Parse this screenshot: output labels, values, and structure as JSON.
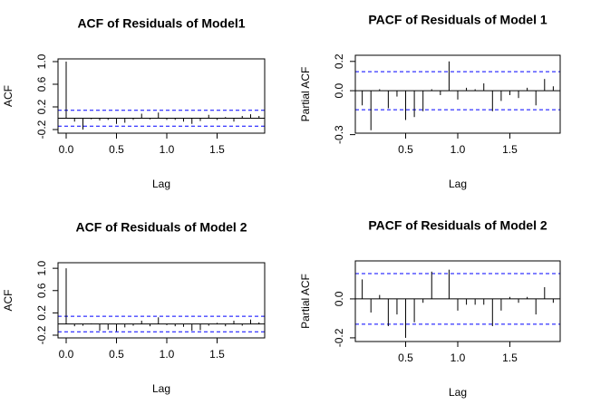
{
  "chart_data": [
    {
      "type": "acf",
      "title": "ACF of Residuals of Model1",
      "xlabel": "Lag",
      "ylabel": "ACF",
      "x": [
        0,
        0.0833,
        0.1667,
        0.25,
        0.3333,
        0.4167,
        0.5,
        0.5833,
        0.6667,
        0.75,
        0.8333,
        0.9167,
        1,
        1.0833,
        1.1667,
        1.25,
        1.3333,
        1.4167,
        1.5,
        1.5833,
        1.6667,
        1.75,
        1.8333,
        1.9167
      ],
      "values": [
        1.0,
        -0.06,
        -0.2,
        -0.02,
        -0.04,
        -0.03,
        -0.1,
        -0.08,
        -0.03,
        0.08,
        -0.02,
        0.1,
        -0.03,
        -0.03,
        -0.06,
        -0.1,
        -0.05,
        0.06,
        -0.03,
        0.02,
        -0.06,
        0.04,
        0.07,
        0.04
      ],
      "ci_bound": 0.14,
      "color": "#000000",
      "ci_color": "#0000ff",
      "xlim": [
        -0.081,
        1.973
      ],
      "ylim": [
        -0.264,
        1.048
      ],
      "xticks": [
        {
          "value": 0,
          "label": "0.0"
        },
        0.5,
        {
          "value": 1,
          "label": "1.0"
        },
        1.5
      ],
      "yticks": [
        -0.2,
        0.2,
        0.6,
        {
          "value": 1,
          "label": "1.0"
        }
      ]
    },
    {
      "type": "acf",
      "title": "PACF of Residuals of Model 1",
      "xlabel": "Lag",
      "ylabel": "Partial ACF",
      "x": [
        0.0833,
        0.1667,
        0.25,
        0.3333,
        0.4167,
        0.5,
        0.5833,
        0.6667,
        0.75,
        0.8333,
        0.9167,
        1,
        1.0833,
        1.1667,
        1.25,
        1.3333,
        1.4167,
        1.5,
        1.5833,
        1.6667,
        1.75,
        1.8333,
        1.9167
      ],
      "values": [
        -0.1,
        -0.27,
        0.01,
        -0.12,
        -0.04,
        -0.2,
        -0.18,
        -0.14,
        0.01,
        -0.03,
        0.2,
        -0.06,
        0.02,
        0.01,
        0.05,
        -0.14,
        -0.07,
        -0.03,
        -0.05,
        0.02,
        -0.1,
        0.08,
        0.03
      ],
      "ci_bound": 0.13,
      "color": "#000000",
      "ci_color": "#0000ff",
      "xlim": [
        0.017,
        1.983
      ],
      "ylim": [
        -0.29,
        0.242
      ],
      "xticks": [
        0.5,
        {
          "value": 1,
          "label": "1.0"
        },
        1.5
      ],
      "yticks": [
        -0.3,
        {
          "value": 0,
          "label": "0.0"
        },
        0.2
      ]
    },
    {
      "type": "acf",
      "title": "ACF of Residuals of Model 2",
      "xlabel": "Lag",
      "ylabel": "ACF",
      "x": [
        0,
        0.0833,
        0.1667,
        0.25,
        0.3333,
        0.4167,
        0.5,
        0.5833,
        0.6667,
        0.75,
        0.8333,
        0.9167,
        1,
        1.0833,
        1.1667,
        1.25,
        1.3333,
        1.4167,
        1.5,
        1.5833,
        1.6667,
        1.75,
        1.8333,
        1.9167
      ],
      "values": [
        1.0,
        -0.04,
        -0.03,
        0.01,
        -0.12,
        -0.1,
        -0.13,
        -0.06,
        -0.03,
        0.06,
        -0.04,
        0.12,
        -0.02,
        -0.04,
        -0.05,
        -0.12,
        -0.11,
        -0.03,
        0.02,
        -0.04,
        0.06,
        -0.03,
        0.08,
        0.03
      ],
      "ci_bound": 0.14,
      "color": "#000000",
      "ci_color": "#0000ff",
      "xlim": [
        -0.081,
        1.973
      ],
      "ylim": [
        -0.249,
        1.1
      ],
      "xticks": [
        {
          "value": 0,
          "label": "0.0"
        },
        0.5,
        {
          "value": 1,
          "label": "1.0"
        },
        1.5
      ],
      "yticks": [
        -0.2,
        0.2,
        0.6,
        {
          "value": 1,
          "label": "1.0"
        }
      ]
    },
    {
      "type": "acf",
      "title": "PACF of Residuals of Model 2",
      "xlabel": "Lag",
      "ylabel": "Partial ACF",
      "x": [
        0.0833,
        0.1667,
        0.25,
        0.3333,
        0.4167,
        0.5,
        0.5833,
        0.6667,
        0.75,
        0.8333,
        0.9167,
        1,
        1.0833,
        1.1667,
        1.25,
        1.3333,
        1.4167,
        1.5,
        1.5833,
        1.6667,
        1.75,
        1.8333,
        1.9167
      ],
      "values": [
        0.1,
        -0.07,
        0.02,
        -0.14,
        -0.08,
        -0.2,
        -0.12,
        -0.02,
        0.14,
        0.0,
        0.15,
        -0.06,
        -0.03,
        -0.03,
        -0.03,
        -0.14,
        -0.06,
        0.01,
        -0.02,
        0.01,
        -0.08,
        0.06,
        -0.02
      ],
      "ci_bound": 0.13,
      "color": "#000000",
      "ci_color": "#0000ff",
      "xlim": [
        0.017,
        1.983
      ],
      "ylim": [
        -0.219,
        0.195
      ],
      "xticks": [
        0.5,
        {
          "value": 1,
          "label": "1.0"
        },
        1.5
      ],
      "yticks": [
        -0.2,
        {
          "value": 0,
          "label": "0.0"
        }
      ]
    }
  ]
}
